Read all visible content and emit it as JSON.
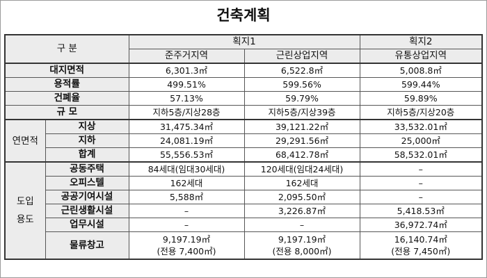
{
  "title": "건축계획",
  "table": {
    "header": {
      "label": "구 분",
      "groups": [
        {
          "name": "획지1",
          "zones": [
            "준주거지역",
            "근린상업지역"
          ]
        },
        {
          "name": "획지2",
          "zones": [
            "유통상업지역"
          ]
        }
      ]
    },
    "rows": [
      {
        "label": "대지면적",
        "values": [
          "6,301.3㎡",
          "6,522.8㎡",
          "5,008.8㎡"
        ]
      },
      {
        "label": "용적률",
        "values": [
          "499.51%",
          "599.56%",
          "599.44%"
        ]
      },
      {
        "label": "건폐율",
        "values": [
          "57.13%",
          "59.79%",
          "59.89%"
        ]
      },
      {
        "label": "규 모",
        "values": [
          "지하5층/지상28층",
          "지하5층/지상39층",
          "지하5층/지상20층"
        ]
      }
    ],
    "sections": [
      {
        "label": [
          "연면적"
        ],
        "rows": [
          {
            "label": "지상",
            "values": [
              "31,475.34㎡",
              "39,121.22㎡",
              "33,532.01㎡"
            ]
          },
          {
            "label": "지하",
            "values": [
              "24,081.19㎡",
              "29,291.56㎡",
              "25,000㎡"
            ]
          },
          {
            "label": "합계",
            "values": [
              "55,556.53㎡",
              "68,412.78㎡",
              "58,532.01㎡"
            ]
          }
        ]
      },
      {
        "label": [
          "도입",
          "용도"
        ],
        "rows": [
          {
            "label": "공동주택",
            "values": [
              "84세대(임대30세대)",
              "120세대(임대24세대)",
              "–"
            ]
          },
          {
            "label": "오피스텔",
            "values": [
              "162세대",
              "162세대",
              "–"
            ]
          },
          {
            "label": "공공기여시설",
            "values": [
              "5,588㎡",
              "2,095.50㎡",
              "–"
            ]
          },
          {
            "label": "근린생활시설",
            "values": [
              "–",
              "3,226.87㎡",
              "5,418.53㎡"
            ]
          },
          {
            "label": "업무시설",
            "values": [
              "–",
              "–",
              "36,972.74㎡"
            ]
          },
          {
            "label": "물류창고",
            "values": [
              {
                "main": "9,197.19㎡",
                "note": "(전용 7,400㎡)"
              },
              {
                "main": "9,197.19㎡",
                "note": "(전용 8,000㎡)"
              },
              {
                "main": "16,140.74㎡",
                "note": "(전용 7,450㎡)"
              }
            ]
          }
        ]
      }
    ]
  }
}
